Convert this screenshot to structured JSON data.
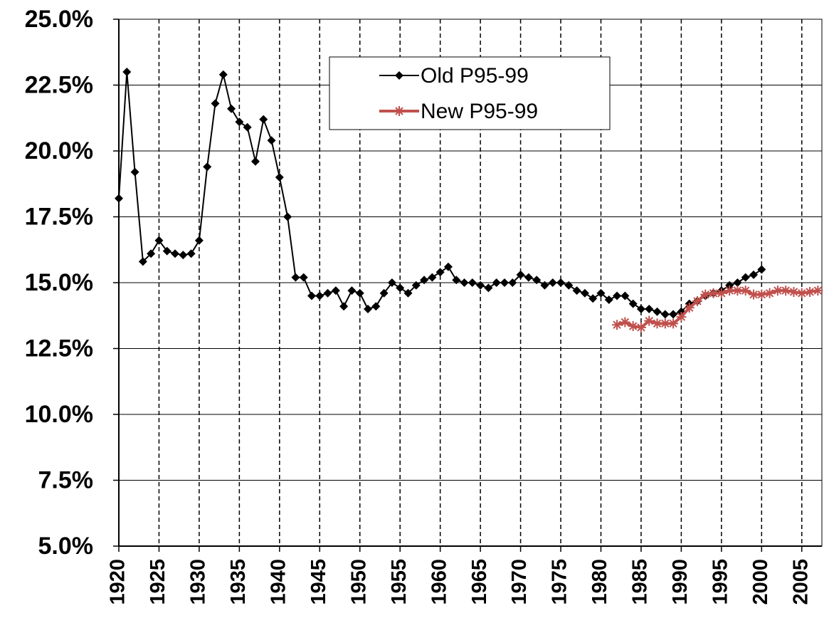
{
  "chart_data": {
    "type": "line",
    "x": [
      1920,
      1921,
      1922,
      1923,
      1924,
      1925,
      1926,
      1927,
      1928,
      1929,
      1930,
      1931,
      1932,
      1933,
      1934,
      1935,
      1936,
      1937,
      1938,
      1939,
      1940,
      1941,
      1942,
      1943,
      1944,
      1945,
      1946,
      1947,
      1948,
      1949,
      1950,
      1951,
      1952,
      1953,
      1954,
      1955,
      1956,
      1957,
      1958,
      1959,
      1960,
      1961,
      1962,
      1963,
      1964,
      1965,
      1966,
      1967,
      1968,
      1969,
      1970,
      1971,
      1972,
      1973,
      1974,
      1975,
      1976,
      1977,
      1978,
      1979,
      1980,
      1981,
      1982,
      1983,
      1984,
      1985,
      1986,
      1987,
      1988,
      1989,
      1990,
      1991,
      1992,
      1993,
      1994,
      1995,
      1996,
      1997,
      1998,
      1999,
      2000,
      2001,
      2002,
      2003,
      2004,
      2005,
      2006,
      2007
    ],
    "series": [
      {
        "name": "Old P95-99",
        "color": "#000000",
        "marker": "diamond",
        "values": [
          18.2,
          23.0,
          19.2,
          15.8,
          16.1,
          16.6,
          16.2,
          16.1,
          16.05,
          16.1,
          16.6,
          19.4,
          21.8,
          22.9,
          21.6,
          21.1,
          20.9,
          19.6,
          21.2,
          20.4,
          19.0,
          17.5,
          15.2,
          15.2,
          14.5,
          14.5,
          14.6,
          14.7,
          14.1,
          14.7,
          14.6,
          14.0,
          14.1,
          14.6,
          15.0,
          14.8,
          14.6,
          14.9,
          15.1,
          15.2,
          15.4,
          15.6,
          15.1,
          15.0,
          15.0,
          14.9,
          14.8,
          15.0,
          15.0,
          15.0,
          15.3,
          15.2,
          15.1,
          14.9,
          15.0,
          15.0,
          14.9,
          14.7,
          14.6,
          14.4,
          14.6,
          14.35,
          14.5,
          14.5,
          14.2,
          14.0,
          14.0,
          13.9,
          13.8,
          13.8,
          13.9,
          14.2,
          14.3,
          14.5,
          14.6,
          14.7,
          14.9,
          15.0,
          15.2,
          15.3,
          15.5,
          null,
          null,
          null,
          null,
          null,
          null,
          null
        ]
      },
      {
        "name": "New P95-99",
        "color": "#c0504d",
        "marker": "asterisk",
        "values": [
          null,
          null,
          null,
          null,
          null,
          null,
          null,
          null,
          null,
          null,
          null,
          null,
          null,
          null,
          null,
          null,
          null,
          null,
          null,
          null,
          null,
          null,
          null,
          null,
          null,
          null,
          null,
          null,
          null,
          null,
          null,
          null,
          null,
          null,
          null,
          null,
          null,
          null,
          null,
          null,
          null,
          null,
          null,
          null,
          null,
          null,
          null,
          null,
          null,
          null,
          null,
          null,
          null,
          null,
          null,
          null,
          null,
          null,
          null,
          null,
          null,
          null,
          13.4,
          13.5,
          13.35,
          13.3,
          13.55,
          13.45,
          13.45,
          13.45,
          13.7,
          14.05,
          14.3,
          14.55,
          14.6,
          14.6,
          14.7,
          14.7,
          14.7,
          14.55,
          14.55,
          14.6,
          14.7,
          14.7,
          14.65,
          14.6,
          14.65,
          14.7
        ]
      }
    ],
    "xlim": [
      1920,
      2007.5
    ],
    "xticks": [
      1920,
      1925,
      1930,
      1935,
      1940,
      1945,
      1950,
      1955,
      1960,
      1965,
      1970,
      1975,
      1980,
      1985,
      1990,
      1995,
      2000,
      2005
    ],
    "ylim": [
      5,
      25
    ],
    "yticks": [
      {
        "value": 5,
        "label": "5.0%"
      },
      {
        "value": 7.5,
        "label": "7.5%"
      },
      {
        "value": 10,
        "label": "10.0%"
      },
      {
        "value": 12.5,
        "label": "12.5%"
      },
      {
        "value": 15,
        "label": "15.0%"
      },
      {
        "value": 17.5,
        "label": "17.5%"
      },
      {
        "value": 20,
        "label": "20.0%"
      },
      {
        "value": 22.5,
        "label": "22.5%"
      },
      {
        "value": 25,
        "label": "25.0%"
      }
    ],
    "grid": true,
    "legend": "upper center"
  }
}
